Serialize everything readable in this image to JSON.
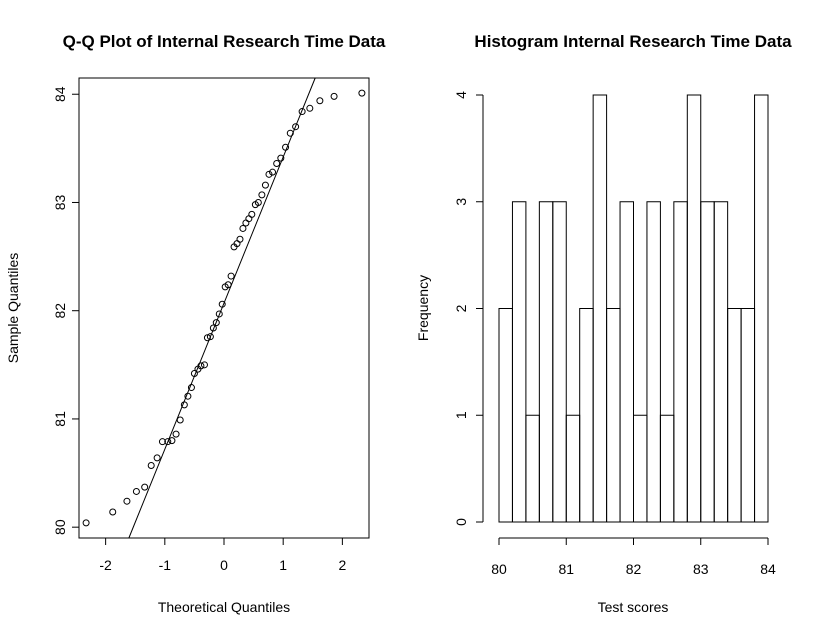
{
  "chart_data": [
    {
      "type": "scatter",
      "title": "Q-Q Plot of Internal Research Time Data",
      "xlabel": "Theoretical Quantiles",
      "ylabel": "Sample Quantiles",
      "xlim": [
        -2.45,
        2.45
      ],
      "ylim": [
        79.9,
        84.15
      ],
      "xticks": [
        -2,
        -1,
        0,
        1,
        2
      ],
      "xtick_labels": [
        "-2",
        "-1",
        "0",
        "1",
        "2"
      ],
      "yticks": [
        80,
        81,
        82,
        83,
        84
      ],
      "ytick_labels": [
        "80",
        "81",
        "82",
        "83",
        "84"
      ],
      "grid": false,
      "reference_line": {
        "intercept": 82.07,
        "slope": 1.35
      },
      "points": {
        "x": [
          -2.33,
          -1.88,
          -1.64,
          -1.48,
          -1.34,
          -1.23,
          -1.13,
          -1.04,
          -0.95,
          -0.88,
          -0.81,
          -0.74,
          -0.67,
          -0.61,
          -0.55,
          -0.5,
          -0.44,
          -0.39,
          -0.33,
          -0.28,
          -0.23,
          -0.18,
          -0.13,
          -0.08,
          -0.03,
          0.02,
          0.07,
          0.12,
          0.17,
          0.22,
          0.27,
          0.32,
          0.37,
          0.42,
          0.47,
          0.53,
          0.58,
          0.64,
          0.7,
          0.76,
          0.82,
          0.89,
          0.96,
          1.04,
          1.12,
          1.21,
          1.32,
          1.45,
          1.62,
          1.86,
          2.33
        ],
        "y": [
          80.04,
          80.14,
          80.24,
          80.33,
          80.37,
          80.57,
          80.64,
          80.79,
          80.79,
          80.8,
          80.86,
          80.99,
          81.13,
          81.21,
          81.29,
          81.42,
          81.46,
          81.49,
          81.5,
          81.75,
          81.76,
          81.84,
          81.89,
          81.97,
          82.06,
          82.22,
          82.24,
          82.32,
          82.59,
          82.62,
          82.66,
          82.76,
          82.81,
          82.85,
          82.89,
          82.98,
          83.0,
          83.07,
          83.16,
          83.26,
          83.28,
          83.36,
          83.41,
          83.51,
          83.64,
          83.7,
          83.84,
          83.87,
          83.94,
          83.98,
          84.01
        ]
      }
    },
    {
      "type": "bar",
      "subtype": "histogram",
      "title": "Histogram Internal Research Time Data",
      "xlabel": "Test scores",
      "ylabel": "Frequency",
      "xlim": [
        80,
        84
      ],
      "ylim": [
        0,
        4
      ],
      "xticks": [
        80,
        81,
        82,
        83,
        84
      ],
      "xtick_labels": [
        "80",
        "81",
        "82",
        "83",
        "84"
      ],
      "yticks": [
        0,
        1,
        2,
        3,
        4
      ],
      "ytick_labels": [
        "0",
        "1",
        "2",
        "3",
        "4"
      ],
      "grid": false,
      "bin_width": 0.2,
      "bin_starts": [
        80.0,
        80.2,
        80.4,
        80.6,
        80.8,
        81.0,
        81.2,
        81.4,
        81.6,
        81.8,
        82.0,
        82.2,
        82.4,
        82.6,
        82.8,
        83.0,
        83.2,
        83.4,
        83.6,
        83.8
      ],
      "values": [
        2,
        3,
        1,
        3,
        3,
        1,
        2,
        4,
        2,
        3,
        1,
        3,
        1,
        3,
        4,
        3,
        3,
        2,
        2,
        4
      ]
    }
  ]
}
